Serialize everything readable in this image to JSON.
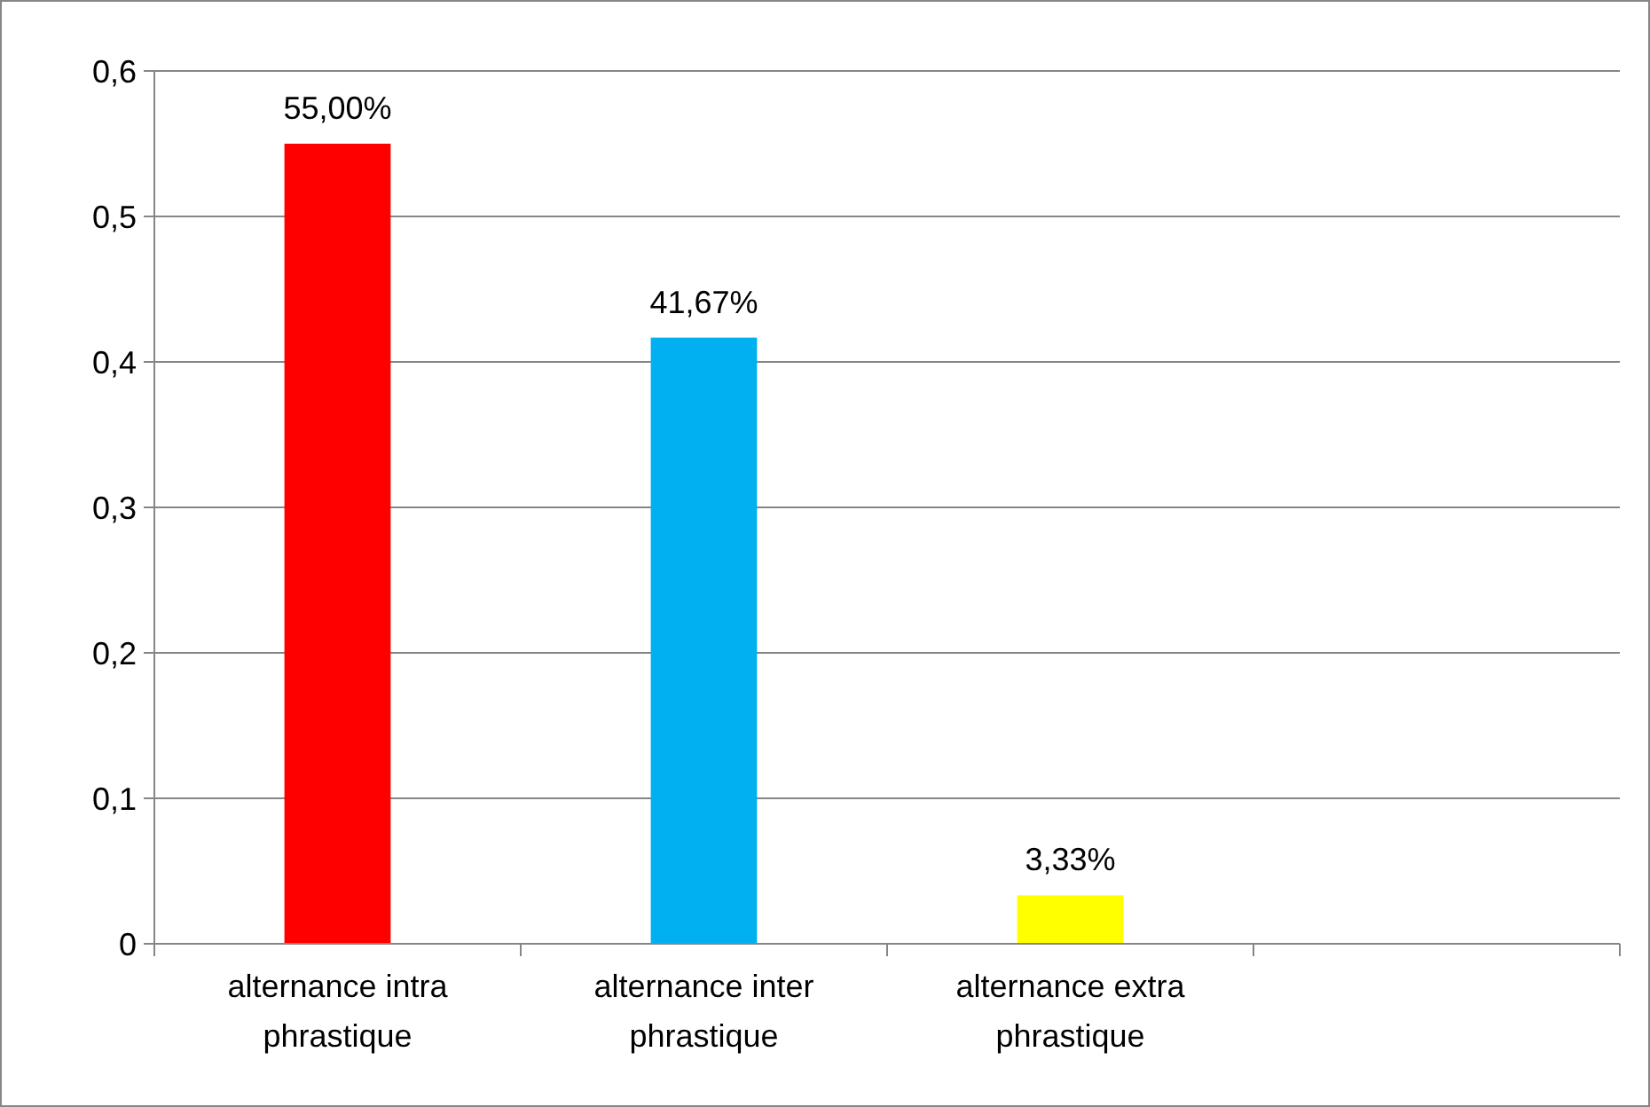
{
  "chart_data": {
    "type": "bar",
    "categories": [
      "alternance intra phrastique",
      "alternance inter phrastique",
      "alternance extra phrastique",
      null
    ],
    "values": [
      0.55,
      0.4167,
      0.0333,
      null
    ],
    "colors": [
      "#ff0000",
      "#00b0f0",
      "#ffff00",
      null
    ],
    "value_labels": [
      "55,00%",
      "41,67%",
      "3,33%",
      null
    ],
    "ylim": [
      0,
      0.6
    ],
    "yticks": [
      0,
      {
        "value": 0.1,
        "label": "0,1"
      },
      {
        "value": 0.2,
        "label": "0,2"
      },
      {
        "value": 0.3,
        "label": "0,3"
      },
      {
        "value": 0.4,
        "label": "0,4"
      },
      {
        "value": 0.5,
        "label": "0,5"
      },
      {
        "value": 0.6,
        "label": "0,6"
      }
    ],
    "grid": "y"
  }
}
